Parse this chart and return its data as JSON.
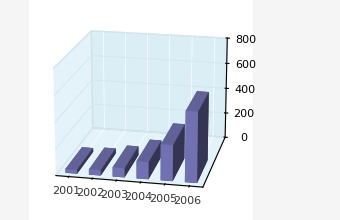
{
  "categories": [
    "2001",
    "2002",
    "2003",
    "2004",
    "2005",
    "2006"
  ],
  "values": [
    30,
    40,
    70,
    130,
    270,
    530
  ],
  "bar_color": "#8080c8",
  "wall_color_back": "#c8e8f4",
  "wall_color_left": "#b8dced",
  "floor_color": "#8a8a9a",
  "ylim": [
    0,
    800
  ],
  "yticks": [
    0,
    200,
    400,
    600,
    800
  ],
  "grid_color": "#d0e8f0",
  "text_color": "#333333",
  "tick_fontsize": 8,
  "elev": 18,
  "azim": -78,
  "bar_width": 0.5,
  "bar_depth": 0.7
}
